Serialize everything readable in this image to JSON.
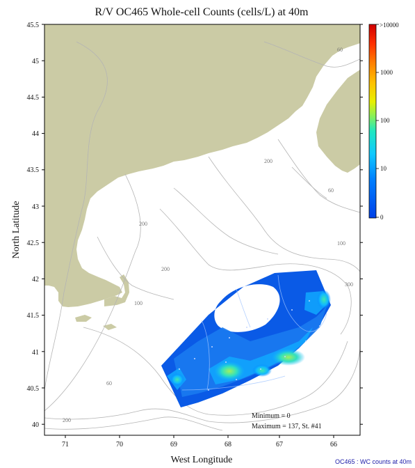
{
  "title": "R/V OC465 Whole-cell Counts (cells/L) at 40m",
  "xlabel": "West Longitude",
  "ylabel": "North Latitude",
  "x_ticks": [
    "71",
    "70",
    "69",
    "68",
    "67",
    "66"
  ],
  "y_ticks": [
    "45.5",
    "45",
    "44.5",
    "44",
    "43.5",
    "43",
    "42.5",
    "42",
    "41.5",
    "41",
    "40.5",
    "40"
  ],
  "colorbar": {
    "labels": [
      ">10000",
      "1000",
      "100",
      "10",
      "0"
    ],
    "colors": [
      "#0050e0",
      "#0080ff",
      "#00b0ff",
      "#10d8e8",
      "#40e8a0",
      "#a0f040",
      "#f0f000",
      "#ffc000",
      "#ff8000",
      "#ff4000",
      "#e00000"
    ]
  },
  "depth_labels": [
    "60",
    "200",
    "200",
    "100",
    "200",
    "60",
    "100",
    "300",
    "60",
    "200"
  ],
  "stats": {
    "minimum": "Minimum = 0",
    "maximum": "Maximum = 137, St. #41"
  },
  "footer": "OC465 : WC counts at 40m",
  "colors": {
    "land": "#cbcba5",
    "contour": "#b0b0b0",
    "survey_low": "#0a5ae6",
    "frame": "#000000"
  },
  "chart_data": {
    "type": "heatmap",
    "title": "R/V OC465 Whole-cell Counts (cells/L) at 40m",
    "xlabel": "West Longitude",
    "ylabel": "North Latitude",
    "xlim": [
      71.4,
      65.6
    ],
    "ylim": [
      39.85,
      45.5
    ],
    "value_range": [
      0,
      137
    ],
    "max_station": "41"
  }
}
